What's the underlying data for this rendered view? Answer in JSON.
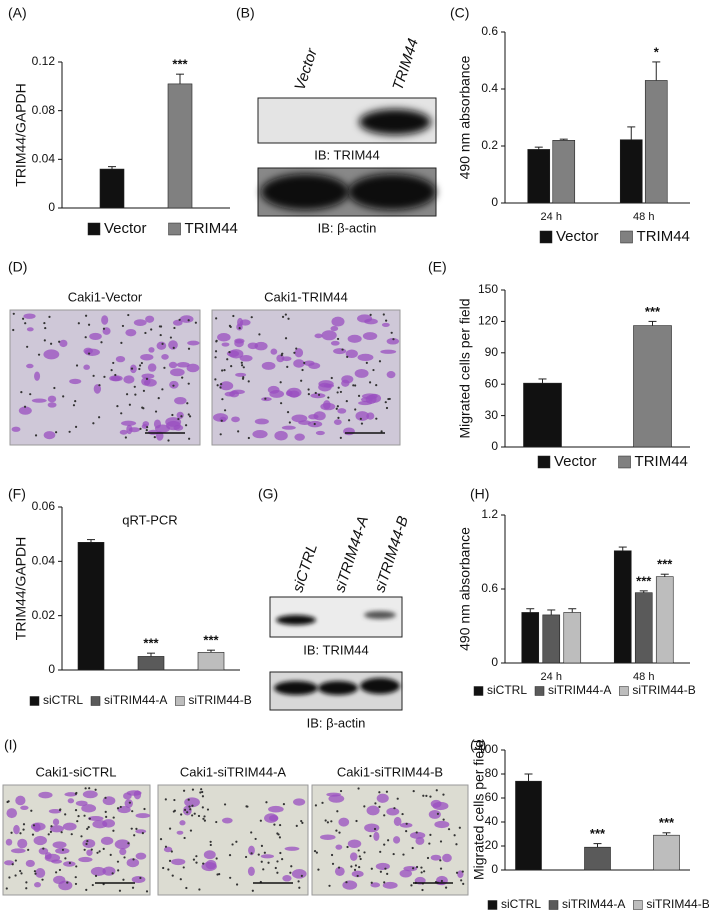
{
  "chart_data": [
    {
      "type": "bar",
      "panel_label": "(A)",
      "y_label": "TRIM44/GAPDH",
      "categories": [
        null
      ],
      "ylim": [
        0,
        0.12
      ],
      "yticks": [
        0,
        0.04,
        0.08,
        0.12
      ],
      "series": [
        {
          "name": "Vector",
          "color": "#111111",
          "values": [
            0.032
          ],
          "errors": [
            0.002
          ],
          "annotations": [
            null
          ]
        },
        {
          "name": "TRIM44",
          "color": "#808080",
          "values": [
            0.102
          ],
          "errors": [
            0.008
          ],
          "annotations": [
            "***"
          ]
        }
      ]
    },
    {
      "type": "bar",
      "panel_label": "(C)",
      "y_label": "490 nm absorbance",
      "categories": [
        "24 h",
        "48 h"
      ],
      "ylim": [
        0,
        0.6
      ],
      "yticks": [
        0,
        0.2,
        0.4,
        0.6
      ],
      "series": [
        {
          "name": "Vector",
          "color": "#111111",
          "values": [
            0.188,
            0.222
          ],
          "errors": [
            0.008,
            0.045
          ],
          "annotations": [
            null,
            null
          ]
        },
        {
          "name": "TRIM44",
          "color": "#808080",
          "values": [
            0.22,
            0.43
          ],
          "errors": [
            0.004,
            0.065
          ],
          "annotations": [
            null,
            "*"
          ]
        }
      ]
    },
    {
      "type": "bar",
      "panel_label": "(E)",
      "y_label": "Migrated cells per field",
      "categories": [
        null
      ],
      "ylim": [
        0,
        150
      ],
      "yticks": [
        0,
        30,
        60,
        90,
        120,
        150
      ],
      "series": [
        {
          "name": "Vector",
          "color": "#111111",
          "values": [
            61
          ],
          "errors": [
            4
          ],
          "annotations": [
            null
          ]
        },
        {
          "name": "TRIM44",
          "color": "#808080",
          "values": [
            116
          ],
          "errors": [
            4
          ],
          "annotations": [
            "***"
          ]
        }
      ]
    },
    {
      "type": "bar",
      "panel_label": "(F)",
      "title": "qRT-PCR",
      "y_label": "TRIM44/GAPDH",
      "categories": [
        null
      ],
      "ylim": [
        0,
        0.06
      ],
      "yticks": [
        0,
        0.02,
        0.04,
        0.06
      ],
      "series": [
        {
          "name": "siCTRL",
          "color": "#111111",
          "values": [
            0.047
          ],
          "errors": [
            0.001
          ],
          "annotations": [
            null
          ]
        },
        {
          "name": "siTRIM44-A",
          "color": "#5a5a5a",
          "values": [
            0.005
          ],
          "errors": [
            0.0012
          ],
          "annotations": [
            "***"
          ]
        },
        {
          "name": "siTRIM44-B",
          "color": "#bdbdbd",
          "values": [
            0.0065
          ],
          "errors": [
            0.0008
          ],
          "annotations": [
            "***"
          ]
        }
      ]
    },
    {
      "type": "bar",
      "panel_label": "(H)",
      "y_label": "490 nm absorbance",
      "categories": [
        "24 h",
        "48 h"
      ],
      "ylim": [
        0,
        1.2
      ],
      "yticks": [
        0,
        0.6,
        1.2
      ],
      "series": [
        {
          "name": "siCTRL",
          "color": "#111111",
          "values": [
            0.41,
            0.91
          ],
          "errors": [
            0.03,
            0.03
          ],
          "annotations": [
            null,
            null
          ]
        },
        {
          "name": "siTRIM44-A",
          "color": "#5a5a5a",
          "values": [
            0.39,
            0.57
          ],
          "errors": [
            0.04,
            0.015
          ],
          "annotations": [
            null,
            "***"
          ]
        },
        {
          "name": "siTRIM44-B",
          "color": "#bdbdbd",
          "values": [
            0.41,
            0.7
          ],
          "errors": [
            0.03,
            0.02
          ],
          "annotations": [
            null,
            "***"
          ]
        }
      ]
    },
    {
      "type": "bar",
      "panel_label": "(J)",
      "y_label": "Migrated cells per field",
      "categories": [
        null
      ],
      "ylim": [
        0,
        100
      ],
      "yticks": [
        0,
        20,
        40,
        60,
        80,
        100
      ],
      "series": [
        {
          "name": "siCTRL",
          "color": "#111111",
          "values": [
            74
          ],
          "errors": [
            6
          ],
          "annotations": [
            null
          ]
        },
        {
          "name": "siTRIM44-A",
          "color": "#5a5a5a",
          "values": [
            19
          ],
          "errors": [
            3
          ],
          "annotations": [
            "***"
          ]
        },
        {
          "name": "siTRIM44-B",
          "color": "#bdbdbd",
          "values": [
            29
          ],
          "errors": [
            2
          ],
          "annotations": [
            "***"
          ]
        }
      ]
    }
  ],
  "blots": [
    {
      "panel_label": "(B)",
      "lanes": [
        "Vector",
        "TRIM44"
      ],
      "labels": [
        "IB: TRIM44",
        "IB: β-actin"
      ]
    },
    {
      "panel_label": "(G)",
      "lanes": [
        "siCTRL",
        "siTRIM44-A",
        "siTRIM44-B"
      ],
      "labels": [
        "IB: TRIM44",
        "IB: β-actin"
      ]
    }
  ],
  "images": [
    {
      "panel_label": "(D)",
      "captions": [
        "Caki1-Vector",
        "Caki1-TRIM44"
      ]
    },
    {
      "panel_label": "(I)",
      "captions": [
        "Caki1-siCTRL",
        "Caki1-siTRIM44-A",
        "Caki1-siTRIM44-B"
      ]
    }
  ]
}
